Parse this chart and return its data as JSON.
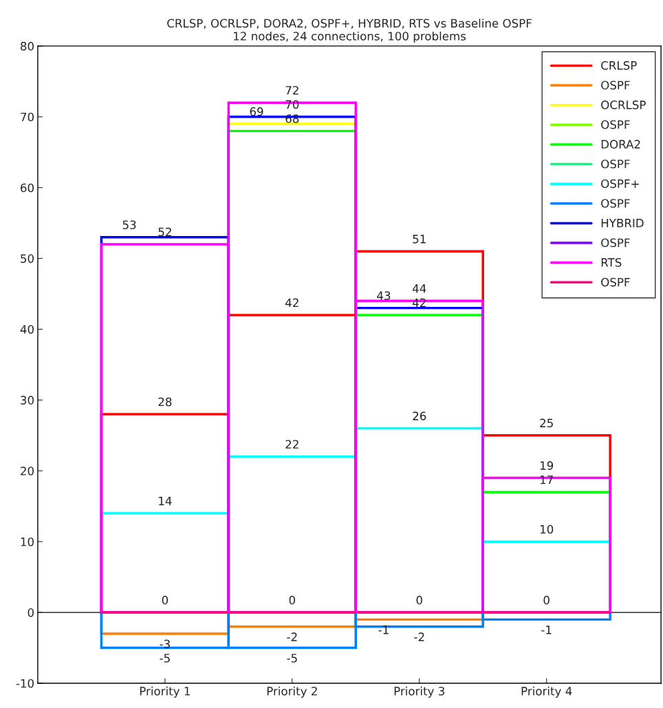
{
  "chart_data": {
    "type": "bar",
    "title": "CRLSP, OCRLSP, DORA2, OSPF+, HYBRID, RTS vs Baseline OSPF",
    "subtitle": "12 nodes, 24 connections, 100 problems",
    "categories": [
      "Priority 1",
      "Priority 2",
      "Priority 3",
      "Priority 4"
    ],
    "series": [
      {
        "name": "CRLSP",
        "color": "#ff0000",
        "values": [
          28,
          42,
          51,
          25
        ],
        "value_labels": [
          "28",
          "42",
          "51",
          "25"
        ]
      },
      {
        "name": "OSPF",
        "color": "#ff8000",
        "values": [
          -3,
          -2,
          -1,
          null
        ],
        "value_labels": [
          "-3",
          "-2",
          "-1",
          null
        ]
      },
      {
        "name": "OCRLSP",
        "color": "#ffff00",
        "values": [
          null,
          69,
          null,
          null
        ],
        "value_labels": [
          null,
          "69",
          null,
          null
        ]
      },
      {
        "name": "OSPF",
        "color": "#80ff00",
        "values": [
          0,
          0,
          0,
          0
        ],
        "value_labels": [
          null,
          null,
          null,
          null
        ]
      },
      {
        "name": "DORA2",
        "color": "#00ff00",
        "values": [
          null,
          68,
          42,
          17
        ],
        "value_labels": [
          null,
          "68",
          "42",
          "17"
        ]
      },
      {
        "name": "OSPF",
        "color": "#00ff80",
        "values": [
          0,
          0,
          0,
          0
        ],
        "value_labels": [
          null,
          null,
          null,
          null
        ]
      },
      {
        "name": "OSPF+",
        "color": "#00ffff",
        "values": [
          14,
          22,
          26,
          10
        ],
        "value_labels": [
          "14",
          "22",
          "26",
          "10"
        ]
      },
      {
        "name": "OSPF",
        "color": "#0080ff",
        "values": [
          -5,
          -5,
          -2,
          -1
        ],
        "value_labels": [
          "-5",
          "-5",
          "-2",
          "-1"
        ]
      },
      {
        "name": "HYBRID",
        "color": "#0000ff",
        "values": [
          53,
          70,
          43,
          null
        ],
        "value_labels": [
          "53",
          "70",
          "43",
          null
        ]
      },
      {
        "name": "OSPF",
        "color": "#8000ff",
        "values": [
          0,
          0,
          0,
          0
        ],
        "value_labels": [
          null,
          null,
          null,
          null
        ]
      },
      {
        "name": "RTS",
        "color": "#ff00ff",
        "values": [
          52,
          72,
          44,
          19
        ],
        "value_labels": [
          "52",
          "72",
          "44",
          "19"
        ]
      },
      {
        "name": "OSPF",
        "color": "#ff0080",
        "values": [
          0,
          0,
          0,
          0
        ],
        "value_labels": [
          "0",
          "0",
          "0",
          "0"
        ]
      }
    ],
    "ylim": [
      -10,
      80
    ],
    "yticks": [
      -10,
      0,
      10,
      20,
      30,
      40,
      50,
      60,
      70,
      80
    ],
    "ref_lines": [
      {
        "axis": "y",
        "value": 0,
        "color": "#000000"
      }
    ],
    "grid": false,
    "legend": "top right"
  }
}
